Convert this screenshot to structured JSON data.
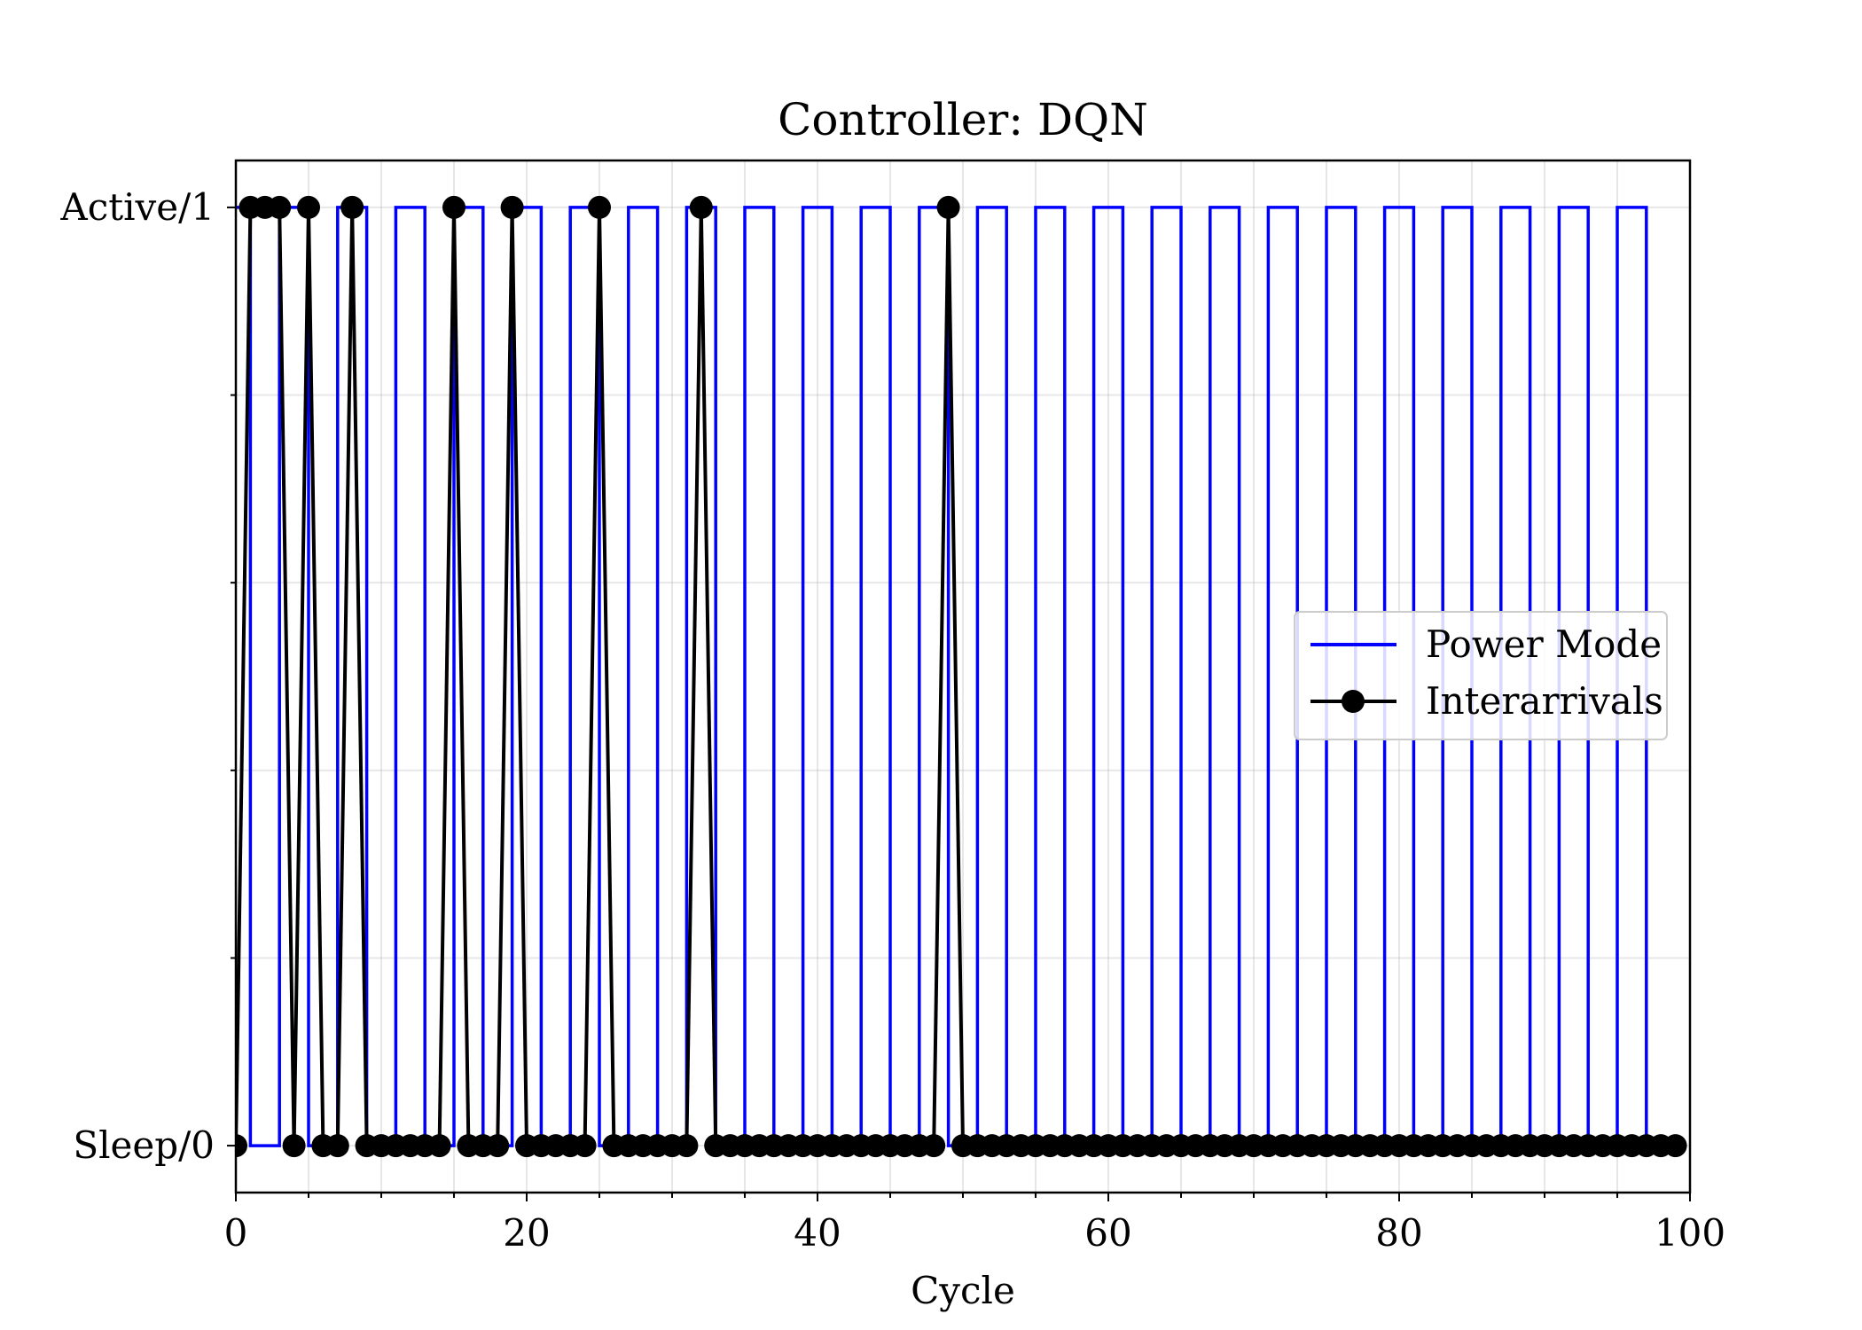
{
  "chart_data": {
    "type": "line",
    "title": "Controller: DQN",
    "xlabel": "Cycle",
    "ylabel": "",
    "xlim": [
      0,
      100
    ],
    "ylim": [
      -0.05,
      1.05
    ],
    "x_ticks": [
      {
        "value": 0,
        "label": "0"
      },
      {
        "value": 20,
        "label": "20"
      },
      {
        "value": 40,
        "label": "40"
      },
      {
        "value": 60,
        "label": "60"
      },
      {
        "value": 80,
        "label": "80"
      },
      {
        "value": 100,
        "label": "100"
      }
    ],
    "x_minor_step": 5,
    "y_ticks": [
      {
        "value": 0,
        "label": "Sleep/0"
      },
      {
        "value": 1,
        "label": "Active/1"
      }
    ],
    "y_minor_step": 0.2,
    "grid": true,
    "legend_position": "center-right",
    "series": [
      {
        "name": "Power Mode",
        "style": "step-post",
        "color": "#0000ff",
        "x": [
          0,
          1,
          2,
          3,
          4,
          5,
          6,
          7,
          8,
          9,
          10,
          11,
          12,
          13,
          14,
          15,
          16,
          17,
          18,
          19,
          20,
          21,
          22,
          23,
          24,
          25,
          26,
          27,
          28,
          29,
          30,
          31,
          32,
          33,
          34,
          35,
          36,
          37,
          38,
          39,
          40,
          41,
          42,
          43,
          44,
          45,
          46,
          47,
          48,
          49,
          50,
          51,
          52,
          53,
          54,
          55,
          56,
          57,
          58,
          59,
          60,
          61,
          62,
          63,
          64,
          65,
          66,
          67,
          68,
          69,
          70,
          71,
          72,
          73,
          74,
          75,
          76,
          77,
          78,
          79,
          80,
          81,
          82,
          83,
          84,
          85,
          86,
          87,
          88,
          89,
          90,
          91,
          92,
          93,
          94,
          95,
          96,
          97
        ],
        "values": [
          1,
          0,
          0,
          1,
          1,
          0,
          0,
          1,
          1,
          0,
          0,
          1,
          1,
          0,
          0,
          1,
          1,
          0,
          0,
          1,
          1,
          0,
          0,
          1,
          1,
          0,
          0,
          1,
          1,
          0,
          0,
          1,
          1,
          0,
          0,
          1,
          1,
          0,
          0,
          1,
          1,
          0,
          0,
          1,
          1,
          0,
          0,
          1,
          1,
          0,
          0,
          1,
          1,
          0,
          0,
          1,
          1,
          0,
          0,
          1,
          1,
          0,
          0,
          1,
          1,
          0,
          0,
          1,
          1,
          0,
          0,
          1,
          1,
          0,
          0,
          1,
          1,
          0,
          0,
          1,
          1,
          0,
          0,
          1,
          1,
          0,
          0,
          1,
          1,
          0,
          0,
          1,
          1,
          0,
          0,
          1,
          1,
          0
        ]
      },
      {
        "name": "Interarrivals",
        "style": "line-marker",
        "color": "#000000",
        "x": [
          0,
          1,
          2,
          3,
          4,
          5,
          6,
          7,
          8,
          9,
          10,
          11,
          12,
          13,
          14,
          15,
          16,
          17,
          18,
          19,
          20,
          21,
          22,
          23,
          24,
          25,
          26,
          27,
          28,
          29,
          30,
          31,
          32,
          33,
          34,
          35,
          36,
          37,
          38,
          39,
          40,
          41,
          42,
          43,
          44,
          45,
          46,
          47,
          48,
          49,
          50,
          51,
          52,
          53,
          54,
          55,
          56,
          57,
          58,
          59,
          60,
          61,
          62,
          63,
          64,
          65,
          66,
          67,
          68,
          69,
          70,
          71,
          72,
          73,
          74,
          75,
          76,
          77,
          78,
          79,
          80,
          81,
          82,
          83,
          84,
          85,
          86,
          87,
          88,
          89,
          90,
          91,
          92,
          93,
          94,
          95,
          96,
          97,
          98,
          99
        ],
        "values": [
          0,
          1,
          1,
          1,
          0,
          1,
          0,
          0,
          1,
          0,
          0,
          0,
          0,
          0,
          0,
          1,
          0,
          0,
          0,
          1,
          0,
          0,
          0,
          0,
          0,
          1,
          0,
          0,
          0,
          0,
          0,
          0,
          1,
          0,
          0,
          0,
          0,
          0,
          0,
          0,
          0,
          0,
          0,
          0,
          0,
          0,
          0,
          0,
          0,
          1,
          0,
          0,
          0,
          0,
          0,
          0,
          0,
          0,
          0,
          0,
          0,
          0,
          0,
          0,
          0,
          0,
          0,
          0,
          0,
          0,
          0,
          0,
          0,
          0,
          0,
          0,
          0,
          0,
          0,
          0,
          0,
          0,
          0,
          0,
          0,
          0,
          0,
          0,
          0,
          0,
          0,
          0,
          0,
          0,
          0,
          0,
          0,
          0,
          0,
          0
        ]
      }
    ]
  }
}
